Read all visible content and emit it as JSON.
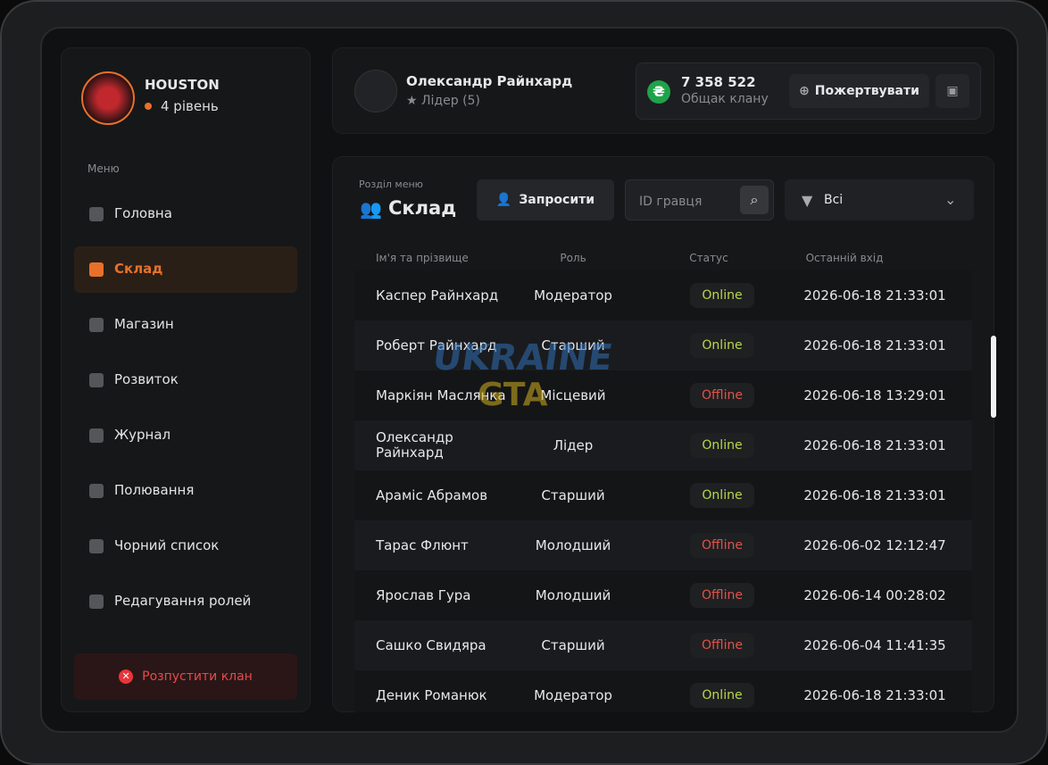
{
  "sidebar": {
    "clan_name": "HOUSTON",
    "level": "4 рівень",
    "menu_label": "Меню",
    "active": 1,
    "items": [
      "Головна",
      "Склад",
      "Магазин",
      "Розвиток",
      "Журнал",
      "Полювання",
      "Чорний список",
      "Редагування ролей"
    ],
    "disband": "Розпустити клан"
  },
  "header": {
    "user_name": "Олександр Райнхард",
    "user_role": "Лідер (5)",
    "balance": "7 358 522",
    "balance_label": "Общак клану",
    "donate": "Пожертвувати"
  },
  "section": {
    "label": "Розділ меню",
    "title": "Склад",
    "invite": "Запросити",
    "search_placeholder": "ID гравця",
    "filter": "Всі"
  },
  "watermark": [
    "UKRAINE",
    "GTA"
  ],
  "table": {
    "columns": [
      "Ім'я та прізвище",
      "Роль",
      "Статус",
      "Останній вхід"
    ],
    "rows": [
      {
        "name": "Каспер Райнхард",
        "role": "Модератор",
        "status": "Online",
        "status_color": "#b6d94a",
        "last": "2026-06-18 21:33:01"
      },
      {
        "name": "Роберт Райнхард",
        "role": "Старший",
        "status": "Online",
        "status_color": "#b6d94a",
        "last": "2026-06-18 21:33:01"
      },
      {
        "name": "Маркіян Маслянка",
        "role": "Місцевий",
        "status": "Offline",
        "status_color": "#e0524a",
        "last": "2026-06-18 13:29:01"
      },
      {
        "name": "Олександр Райнхард",
        "role": "Лідер",
        "status": "Online",
        "status_color": "#b6d94a",
        "last": "2026-06-18 21:33:01"
      },
      {
        "name": "Араміс Абрамов",
        "role": "Старший",
        "status": "Online",
        "status_color": "#b6d94a",
        "last": "2026-06-18 21:33:01"
      },
      {
        "name": "Тарас Флюнт",
        "role": "Молодший",
        "status": "Offline",
        "status_color": "#e0524a",
        "last": "2026-06-02 12:12:47"
      },
      {
        "name": "Ярослав Гура",
        "role": "Молодший",
        "status": "Offline",
        "status_color": "#e0524a",
        "last": "2026-06-14 00:28:02"
      },
      {
        "name": "Сашко Свидяра",
        "role": "Старший",
        "status": "Offline",
        "status_color": "#e0524a",
        "last": "2026-06-04 11:41:35"
      },
      {
        "name": "Деник Романюк",
        "role": "Модератор",
        "status": "Online",
        "status_color": "#b6d94a",
        "last": "2026-06-18 21:33:01"
      }
    ]
  }
}
